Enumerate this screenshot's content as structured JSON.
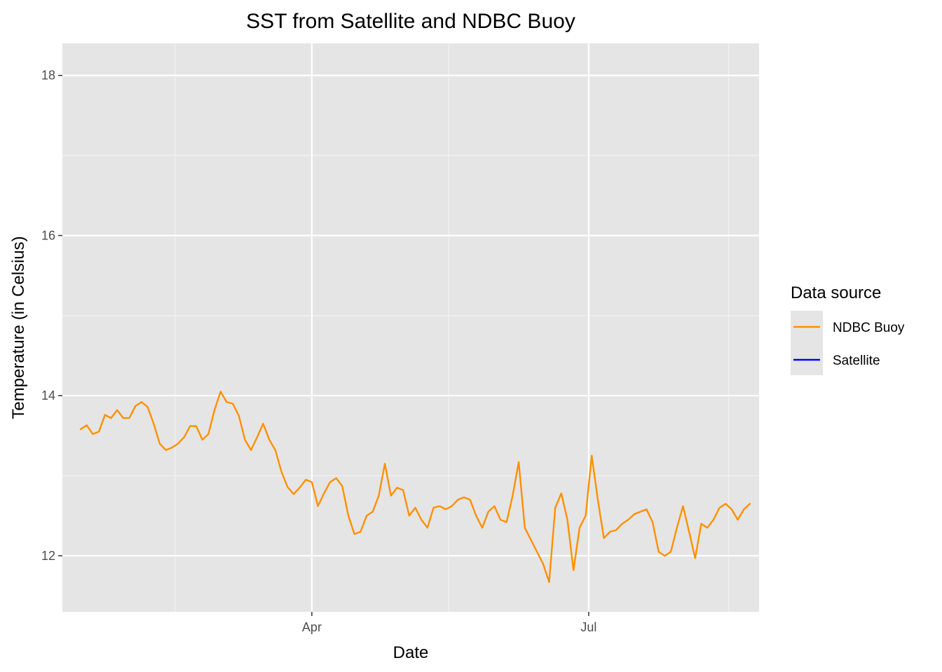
{
  "chart_data": {
    "type": "line",
    "title": "SST from Satellite and NDBC Buoy",
    "xlabel": "Date",
    "ylabel": "Temperature (in Celsius)",
    "x_axis": {
      "type": "date",
      "range": [
        "2021-01-09",
        "2021-08-26"
      ],
      "major_ticks": [
        {
          "date": "2021-04-01",
          "label": "Apr"
        },
        {
          "date": "2021-07-01",
          "label": "Jul"
        }
      ],
      "minor_gridlines": [
        "2021-02-15",
        "2021-05-16",
        "2021-08-16"
      ]
    },
    "y_axis": {
      "range": [
        11.3,
        18.4
      ],
      "ticks": [
        12,
        14,
        16,
        18
      ],
      "minor_gridlines": [
        13,
        15,
        17
      ]
    },
    "legend": {
      "title": "Data source",
      "placement": "right"
    },
    "background": "#e5e5e5",
    "grid": true,
    "series": [
      {
        "name": "NDBC Buoy",
        "color": "#ff9000",
        "points": [
          [
            "2021-01-15",
            13.58
          ],
          [
            "2021-01-17",
            13.63
          ],
          [
            "2021-01-19",
            13.52
          ],
          [
            "2021-01-21",
            13.55
          ],
          [
            "2021-01-23",
            13.76
          ],
          [
            "2021-01-25",
            13.72
          ],
          [
            "2021-01-27",
            13.82
          ],
          [
            "2021-01-29",
            13.72
          ],
          [
            "2021-01-31",
            13.72
          ],
          [
            "2021-02-02",
            13.87
          ],
          [
            "2021-02-04",
            13.92
          ],
          [
            "2021-02-06",
            13.86
          ],
          [
            "2021-02-08",
            13.65
          ],
          [
            "2021-02-10",
            13.4
          ],
          [
            "2021-02-12",
            13.32
          ],
          [
            "2021-02-14",
            13.35
          ],
          [
            "2021-02-16",
            13.4
          ],
          [
            "2021-02-18",
            13.48
          ],
          [
            "2021-02-20",
            13.62
          ],
          [
            "2021-02-22",
            13.62
          ],
          [
            "2021-02-24",
            13.45
          ],
          [
            "2021-02-26",
            13.52
          ],
          [
            "2021-02-28",
            13.82
          ],
          [
            "2021-03-02",
            14.05
          ],
          [
            "2021-03-04",
            13.92
          ],
          [
            "2021-03-06",
            13.9
          ],
          [
            "2021-03-08",
            13.75
          ],
          [
            "2021-03-10",
            13.45
          ],
          [
            "2021-03-12",
            13.32
          ],
          [
            "2021-03-14",
            13.48
          ],
          [
            "2021-03-16",
            13.65
          ],
          [
            "2021-03-18",
            13.45
          ],
          [
            "2021-03-20",
            13.32
          ],
          [
            "2021-03-22",
            13.05
          ],
          [
            "2021-03-24",
            12.86
          ],
          [
            "2021-03-26",
            12.77
          ],
          [
            "2021-03-28",
            12.85
          ],
          [
            "2021-03-30",
            12.95
          ],
          [
            "2021-04-01",
            12.92
          ],
          [
            "2021-04-03",
            12.62
          ],
          [
            "2021-04-05",
            12.78
          ],
          [
            "2021-04-07",
            12.92
          ],
          [
            "2021-04-09",
            12.97
          ],
          [
            "2021-04-11",
            12.87
          ],
          [
            "2021-04-13",
            12.5
          ],
          [
            "2021-04-15",
            12.27
          ],
          [
            "2021-04-17",
            12.3
          ],
          [
            "2021-04-19",
            12.5
          ],
          [
            "2021-04-21",
            12.55
          ],
          [
            "2021-04-23",
            12.75
          ],
          [
            "2021-04-25",
            13.15
          ],
          [
            "2021-04-27",
            12.75
          ],
          [
            "2021-04-29",
            12.85
          ],
          [
            "2021-05-01",
            12.82
          ],
          [
            "2021-05-03",
            12.5
          ],
          [
            "2021-05-05",
            12.6
          ],
          [
            "2021-05-07",
            12.45
          ],
          [
            "2021-05-09",
            12.35
          ],
          [
            "2021-05-11",
            12.6
          ],
          [
            "2021-05-13",
            12.62
          ],
          [
            "2021-05-15",
            12.58
          ],
          [
            "2021-05-17",
            12.62
          ],
          [
            "2021-05-19",
            12.7
          ],
          [
            "2021-05-21",
            12.73
          ],
          [
            "2021-05-23",
            12.7
          ],
          [
            "2021-05-25",
            12.5
          ],
          [
            "2021-05-27",
            12.35
          ],
          [
            "2021-05-29",
            12.55
          ],
          [
            "2021-05-31",
            12.62
          ],
          [
            "2021-06-02",
            12.45
          ],
          [
            "2021-06-04",
            12.42
          ],
          [
            "2021-06-06",
            12.75
          ],
          [
            "2021-06-08",
            13.17
          ],
          [
            "2021-06-10",
            12.35
          ],
          [
            "2021-06-12",
            12.2
          ],
          [
            "2021-06-14",
            12.05
          ],
          [
            "2021-06-16",
            11.9
          ],
          [
            "2021-06-18",
            11.67
          ],
          [
            "2021-06-20",
            12.6
          ],
          [
            "2021-06-22",
            12.78
          ],
          [
            "2021-06-24",
            12.45
          ],
          [
            "2021-06-26",
            11.82
          ],
          [
            "2021-06-28",
            12.35
          ],
          [
            "2021-06-30",
            12.5
          ],
          [
            "2021-07-02",
            13.25
          ],
          [
            "2021-07-04",
            12.7
          ],
          [
            "2021-07-06",
            12.22
          ],
          [
            "2021-07-08",
            12.3
          ],
          [
            "2021-07-10",
            12.32
          ],
          [
            "2021-07-12",
            12.4
          ],
          [
            "2021-07-14",
            12.45
          ],
          [
            "2021-07-16",
            12.52
          ],
          [
            "2021-07-18",
            12.55
          ],
          [
            "2021-07-20",
            12.58
          ],
          [
            "2021-07-22",
            12.42
          ],
          [
            "2021-07-24",
            12.05
          ],
          [
            "2021-07-26",
            12.0
          ],
          [
            "2021-07-28",
            12.05
          ],
          [
            "2021-07-30",
            12.35
          ],
          [
            "2021-08-01",
            12.62
          ],
          [
            "2021-08-03",
            12.3
          ],
          [
            "2021-08-05",
            11.97
          ],
          [
            "2021-08-07",
            12.4
          ],
          [
            "2021-08-09",
            12.35
          ],
          [
            "2021-08-11",
            12.45
          ],
          [
            "2021-08-13",
            12.6
          ],
          [
            "2021-08-15",
            12.65
          ],
          [
            "2021-08-17",
            12.58
          ],
          [
            "2021-08-19",
            12.45
          ],
          [
            "2021-08-21",
            12.58
          ],
          [
            "2021-08-23",
            12.65
          ]
        ]
      },
      {
        "name": "Satellite",
        "color": "#0000ff",
        "points": []
      }
    ]
  }
}
